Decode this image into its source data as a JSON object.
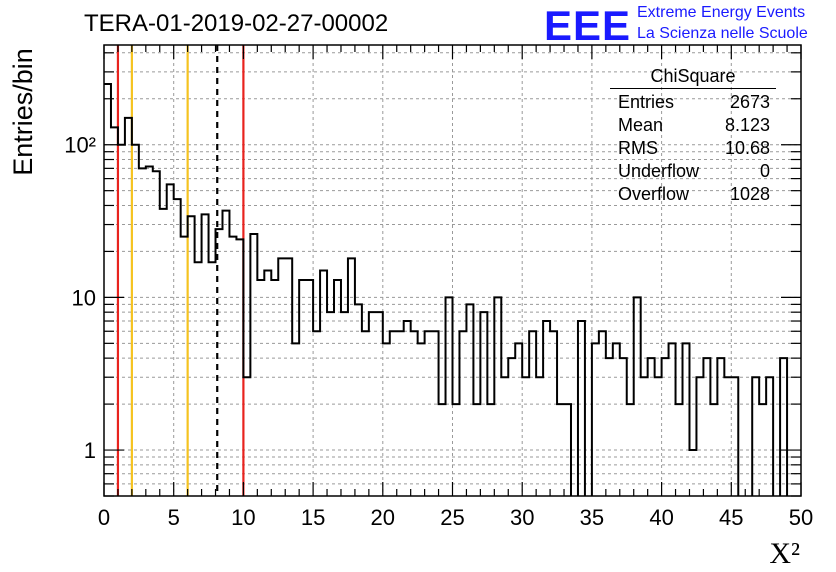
{
  "title": "TERA-01-2019-02-27-00002",
  "logo": {
    "mark": "EEE",
    "line1": "Extreme Energy Events",
    "line2": "La Scienza nelle Scuole",
    "color": "#1a1aff"
  },
  "stats": {
    "title": "ChiSquare",
    "rows": [
      {
        "label": "Entries",
        "value": "2673"
      },
      {
        "label": "Mean",
        "value": "8.123"
      },
      {
        "label": "RMS",
        "value": "10.68"
      },
      {
        "label": "Underflow",
        "value": "0"
      },
      {
        "label": "Overflow",
        "value": "1028"
      }
    ]
  },
  "chart_data": {
    "type": "histogram",
    "xlabel": "X²",
    "ylabel": "Entries/bin",
    "xlim": [
      0,
      50
    ],
    "ylim": [
      0.5,
      450
    ],
    "yscale": "log",
    "grid": true,
    "bin_width": 0.5,
    "x_ticks": [
      0,
      5,
      10,
      15,
      20,
      25,
      30,
      35,
      40,
      45,
      50
    ],
    "x_tick_labels": [
      "0",
      "5",
      "10",
      "15",
      "20",
      "25",
      "30",
      "35",
      "40",
      "45",
      "50"
    ],
    "y_ticks": [
      1,
      10,
      100
    ],
    "y_tick_labels": [
      "1",
      "10",
      "10²"
    ],
    "counts": [
      250,
      130,
      100,
      150,
      100,
      70,
      72,
      67,
      38,
      55,
      44,
      25,
      34,
      17,
      35,
      17,
      28,
      37,
      25,
      24,
      3,
      26,
      13,
      15,
      13,
      18,
      18,
      5,
      13,
      13,
      6,
      15,
      8,
      13,
      8,
      18,
      9,
      6,
      8,
      8,
      5,
      6,
      6,
      7,
      6,
      5,
      6,
      6,
      2,
      10,
      2,
      6,
      9,
      2,
      8,
      2,
      10,
      3,
      4,
      5,
      3,
      6,
      3,
      7,
      6,
      2,
      2,
      0,
      7,
      0,
      5,
      6,
      4,
      5,
      4,
      2,
      10,
      3,
      4,
      3,
      4,
      5,
      2,
      5,
      1,
      3,
      4,
      2,
      4,
      3,
      3,
      0,
      0,
      3,
      2,
      3,
      0,
      4,
      0,
      0
    ],
    "vlines": [
      {
        "x": 1,
        "color": "#e8231e",
        "style": "solid"
      },
      {
        "x": 2,
        "color": "#f5c320",
        "style": "solid"
      },
      {
        "x": 6,
        "color": "#f5c320",
        "style": "solid"
      },
      {
        "x": 8.123,
        "color": "#000000",
        "style": "dashed"
      },
      {
        "x": 10,
        "color": "#e8231e",
        "style": "solid"
      }
    ]
  }
}
